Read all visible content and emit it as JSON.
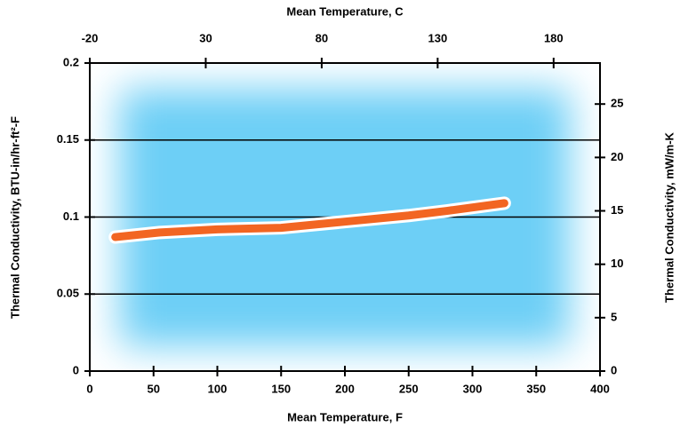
{
  "chart_data": {
    "type": "line",
    "xlabel": "Mean Temperature, F",
    "x2label": "Mean Temperature, C",
    "ylabel": "Thermal Conductivity, BTU-in/hr-ft²-F",
    "y2label": "Thermal Conductivity, mW/m-K",
    "x": [
      20,
      55,
      100,
      150,
      200,
      250,
      280,
      325
    ],
    "series": [
      {
        "color": "#f26522",
        "values": [
          0.087,
          0.09,
          0.092,
          0.093,
          0.097,
          0.101,
          0.104,
          0.109
        ]
      }
    ],
    "xlim": [
      0,
      400
    ],
    "xticks": [
      0,
      50,
      100,
      150,
      200,
      250,
      300,
      350,
      400
    ],
    "x2lim": [
      -20,
      200
    ],
    "x2ticks": [
      -20,
      30,
      80,
      130,
      180
    ],
    "ylim": [
      0,
      0.2
    ],
    "yticks": [
      0,
      0.05,
      0.1,
      0.15,
      0.2
    ],
    "y2lim": [
      0,
      28.84
    ],
    "y2ticks": [
      0,
      5,
      10,
      15,
      20,
      25
    ],
    "grid": true
  }
}
